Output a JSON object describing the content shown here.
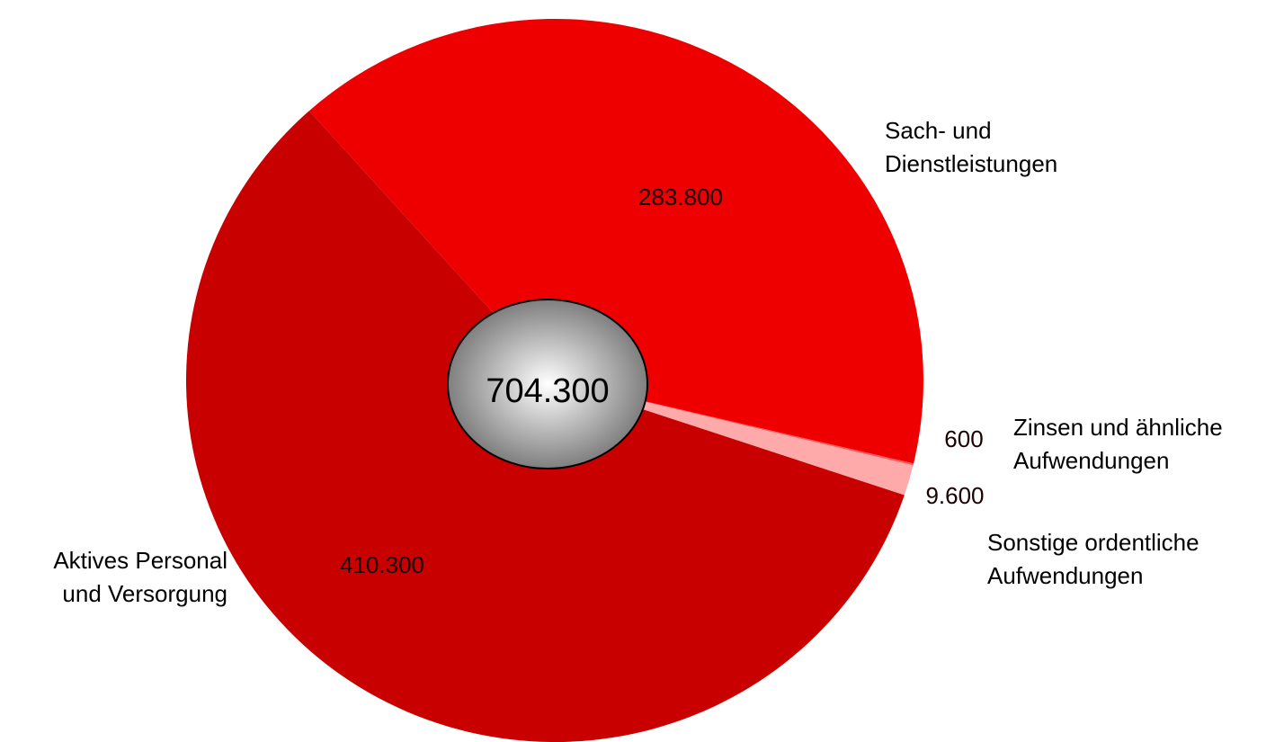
{
  "chart_data": {
    "type": "pie",
    "total_label": "704.300",
    "slices": [
      {
        "category": "Sach- und Dienstleistungen",
        "category_lines": [
          "Sach- und",
          "Dienstleistungen"
        ],
        "value": 283800,
        "value_label": "283.800",
        "color": "#EE0000"
      },
      {
        "category": "Zinsen und ähnliche Aufwendungen",
        "category_lines": [
          "Zinsen und ähnliche",
          "Aufwendungen"
        ],
        "value": 600,
        "value_label": "600",
        "color": "#FF5A5A"
      },
      {
        "category": "Sonstige ordentliche Aufwendungen",
        "category_lines": [
          "Sonstige  ordentliche",
          "Aufwendungen"
        ],
        "value": 9600,
        "value_label": "9.600",
        "color": "#FFAAAA"
      },
      {
        "category": "Aktives Personal und Versorgung",
        "category_lines": [
          "Aktives Personal",
          "und Versorgung"
        ],
        "value": 410300,
        "value_label": "410.300",
        "color": "#C80000"
      }
    ]
  }
}
